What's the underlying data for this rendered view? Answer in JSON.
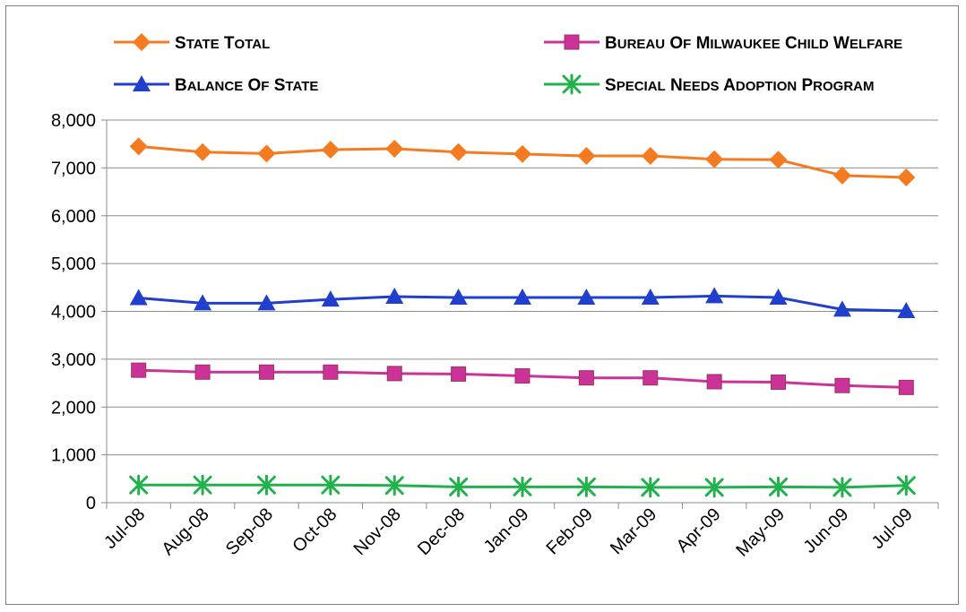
{
  "chart_data": {
    "type": "line",
    "title": "",
    "xlabel": "",
    "ylabel": "",
    "categories": [
      "Jul-08",
      "Aug-08",
      "Sep-08",
      "Oct-08",
      "Nov-08",
      "Dec-08",
      "Jan-09",
      "Feb-09",
      "Mar-09",
      "Apr-09",
      "May-09",
      "Jun-09",
      "Jul-09"
    ],
    "y_ticks": [
      "0",
      "1,000",
      "2,000",
      "3,000",
      "4,000",
      "5,000",
      "6,000",
      "7,000",
      "8,000"
    ],
    "ylim": [
      0,
      8000
    ],
    "grid": true,
    "legend_position": "top",
    "series": [
      {
        "name": "State Total",
        "color": "#F47B20",
        "marker": "diamond",
        "values": [
          7450,
          7330,
          7300,
          7380,
          7400,
          7330,
          7290,
          7250,
          7250,
          7180,
          7170,
          6840,
          6800
        ]
      },
      {
        "name": "Bureau of Milwaukee Child Welfare",
        "color": "#CC3399",
        "marker": "square",
        "values": [
          2770,
          2730,
          2730,
          2730,
          2700,
          2690,
          2650,
          2610,
          2610,
          2530,
          2520,
          2450,
          2410
        ]
      },
      {
        "name": "Balance of State",
        "color": "#1F3FCC",
        "marker": "triangle",
        "values": [
          4280,
          4170,
          4170,
          4250,
          4310,
          4290,
          4290,
          4290,
          4290,
          4320,
          4290,
          4040,
          4010
        ]
      },
      {
        "name": "Special Needs Adoption Program",
        "color": "#22B14C",
        "marker": "asterisk",
        "values": [
          370,
          370,
          370,
          370,
          360,
          330,
          330,
          330,
          320,
          320,
          330,
          320,
          360
        ]
      }
    ]
  }
}
